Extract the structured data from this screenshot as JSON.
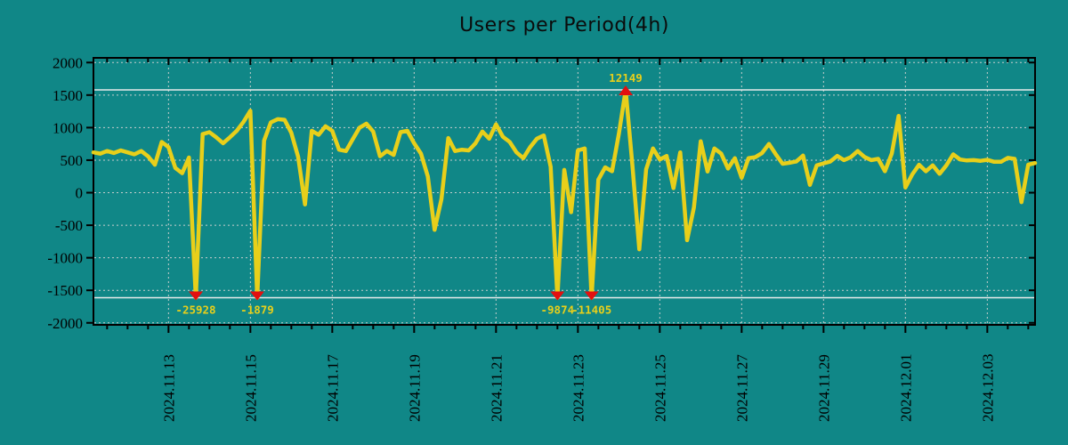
{
  "chart_data": {
    "type": "line",
    "title": "Users per Period(4h)",
    "series_name": "users",
    "line_color": "#e8cf1a",
    "marker_color": "#e31010",
    "background_color": "#108787",
    "grid": true,
    "legend": "none",
    "ylim": [
      -2000,
      2000
    ],
    "y_ticks": [
      -2000,
      -1500,
      -1000,
      -500,
      0,
      500,
      1000,
      1500,
      2000
    ],
    "x_tick_labels": [
      "2024.11.13",
      "2024.11.15",
      "2024.11.17",
      "2024.11.19",
      "2024.11.21",
      "2024.11.23",
      "2024.11.25",
      "2024.11.27",
      "2024.11.29",
      "2024.12.01",
      "2024.12.03"
    ],
    "x_tick_first_index": 11,
    "x_tick_every": 12,
    "x_minor_tick_every": 3,
    "clip_lines": {
      "top": 1580,
      "bottom": -1614
    },
    "values": [
      620,
      600,
      640,
      610,
      650,
      620,
      590,
      640,
      560,
      430,
      780,
      700,
      380,
      300,
      540,
      -25928,
      900,
      930,
      850,
      760,
      850,
      950,
      1090,
      1260,
      -1879,
      800,
      1080,
      1130,
      1120,
      920,
      550,
      -180,
      950,
      890,
      1020,
      950,
      660,
      640,
      820,
      1000,
      1060,
      940,
      560,
      640,
      580,
      930,
      950,
      760,
      600,
      250,
      -570,
      -100,
      840,
      640,
      660,
      650,
      760,
      940,
      830,
      1050,
      860,
      780,
      620,
      530,
      700,
      830,
      880,
      400,
      -9874,
      350,
      -300,
      650,
      680,
      -11405,
      200,
      390,
      330,
      900,
      12149,
      400,
      -870,
      360,
      680,
      510,
      565,
      70,
      620,
      -730,
      -225,
      790,
      325,
      680,
      600,
      370,
      530,
      230,
      530,
      545,
      610,
      750,
      590,
      445,
      460,
      480,
      570,
      120,
      420,
      450,
      480,
      565,
      500,
      545,
      640,
      550,
      500,
      520,
      330,
      600,
      1180,
      80,
      280,
      430,
      330,
      420,
      290,
      420,
      590,
      510,
      495,
      500,
      490,
      505,
      475,
      475,
      535,
      520,
      -145,
      430,
      455
    ],
    "extremes": [
      {
        "index": 15,
        "value": -25928,
        "label": "-25928",
        "direction": "min"
      },
      {
        "index": 24,
        "value": -1879,
        "label": "-1879",
        "direction": "min"
      },
      {
        "index": 68,
        "value": -9874,
        "label": "-9874",
        "direction": "min"
      },
      {
        "index": 73,
        "value": -11405,
        "label": "-11405",
        "direction": "min"
      },
      {
        "index": 78,
        "value": 12149,
        "label": "12149",
        "direction": "max"
      }
    ]
  },
  "style": {
    "grid_color": "#c6cecd",
    "clip_line_color": "#e9eceb",
    "frame_color": "#000000",
    "tick_color": "#000000",
    "label_color": "#000000"
  }
}
